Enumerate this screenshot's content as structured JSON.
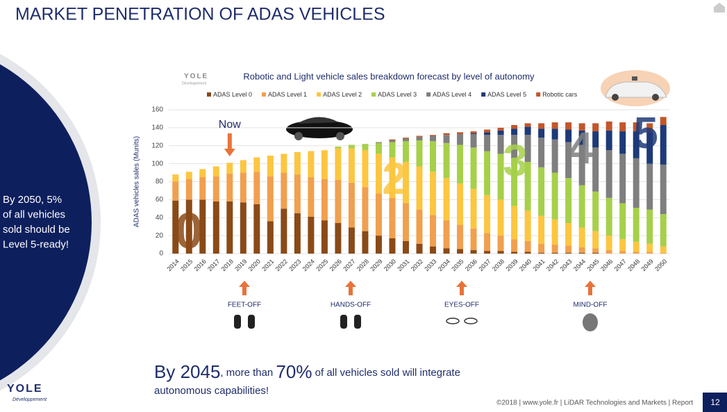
{
  "slide": {
    "title": "MARKET PENETRATION OF ADAS VEHICLES",
    "side_note": [
      "By 2050, 5%",
      "of all vehicles",
      "sold should be",
      "Level 5-ready!"
    ],
    "bottom_line": [
      "By 2045",
      ", more than ",
      "70%",
      " of all vehicles sold will integrate"
    ],
    "bottom_line2": "autonomous capabilities!",
    "footer": "©2018 | www.yole.fr | LiDAR Technologies and Markets | Report",
    "page": "12",
    "logo": "YOLE",
    "logo_sub": "Développement",
    "milestones": [
      "FEET-OFF",
      "HANDS-OFF",
      "EYES-OFF",
      "MIND-OFF"
    ]
  },
  "chart_data": {
    "type": "stacked_bar",
    "title": "Robotic and Light vehicle sales breakdown forecast by level of autonomy",
    "logo": "YOLE",
    "logo_sub": "Développement",
    "y_label": "ADAS vehicles sales (Munits)",
    "now_label": "Now",
    "annotations": [
      "0",
      "2",
      "3",
      "4",
      "5"
    ],
    "categories": [
      "2014",
      "2015",
      "2016",
      "2017",
      "2018",
      "2019",
      "2020",
      "2021",
      "2022",
      "2023",
      "2024",
      "2025",
      "2026",
      "2027",
      "2028",
      "2029",
      "2030",
      "2031",
      "2032",
      "2033",
      "2034",
      "2035",
      "2036",
      "2037",
      "2038",
      "2039",
      "2040",
      "2041",
      "2042",
      "2043",
      "2044",
      "2045",
      "2046",
      "2047",
      "2048",
      "2049",
      "2050"
    ],
    "ylim": [
      0,
      160
    ],
    "yticks": [
      0,
      20,
      40,
      60,
      80,
      100,
      120,
      140,
      160
    ],
    "grid": true,
    "legend": "top",
    "series": [
      {
        "name": "ADAS Level 0",
        "color": "#8a4a17",
        "values": [
          59,
          60,
          60,
          58,
          58,
          57,
          55,
          36,
          50,
          45,
          41,
          37,
          34,
          29,
          25,
          20,
          17,
          14,
          11,
          8,
          6,
          5,
          4,
          3,
          3,
          2,
          2,
          1,
          1,
          1,
          1,
          1,
          0,
          0,
          0,
          0,
          0
        ]
      },
      {
        "name": "ADAS Level 1",
        "color": "#f0a04e",
        "values": [
          21,
          23,
          25,
          28,
          31,
          33,
          36,
          50,
          40,
          43,
          44,
          46,
          48,
          50,
          49,
          47,
          45,
          42,
          38,
          35,
          31,
          27,
          24,
          20,
          17,
          14,
          12,
          10,
          9,
          8,
          6,
          5,
          4,
          3,
          2,
          2,
          1
        ]
      },
      {
        "name": "ADAS Level 2",
        "color": "#fcc640",
        "values": [
          8,
          8,
          9,
          11,
          12,
          14,
          16,
          23,
          21,
          25,
          29,
          32,
          35,
          38,
          41,
          44,
          45,
          46,
          48,
          48,
          47,
          46,
          44,
          42,
          40,
          37,
          34,
          31,
          28,
          25,
          22,
          19,
          16,
          13,
          11,
          9,
          7
        ]
      },
      {
        "name": "ADAS Level 3",
        "color": "#a6d04a",
        "values": [
          0,
          0,
          0,
          0,
          0,
          0,
          0,
          0,
          0,
          0,
          0,
          0,
          2,
          4,
          7,
          12,
          17,
          23,
          29,
          34,
          39,
          43,
          46,
          49,
          51,
          53,
          54,
          54,
          52,
          50,
          47,
          44,
          42,
          40,
          38,
          38,
          36
        ]
      },
      {
        "name": "ADAS Level 4",
        "color": "#7f7f7f",
        "values": [
          0,
          0,
          0,
          0,
          0,
          0,
          0,
          0,
          0,
          0,
          0,
          0,
          0,
          0,
          0,
          1,
          2,
          3,
          4,
          6,
          9,
          12,
          15,
          18,
          21,
          26,
          30,
          33,
          37,
          40,
          45,
          49,
          53,
          55,
          55,
          51,
          55
        ]
      },
      {
        "name": "ADAS Level 5",
        "color": "#1d3a78",
        "values": [
          0,
          0,
          0,
          0,
          0,
          0,
          0,
          0,
          0,
          0,
          0,
          0,
          0,
          0,
          0,
          0,
          0,
          0,
          0,
          0,
          0,
          0,
          1,
          3,
          5,
          7,
          9,
          10,
          12,
          14,
          16,
          18,
          22,
          25,
          30,
          35,
          44
        ]
      },
      {
        "name": "Robotic cars",
        "color": "#c2562a",
        "values": [
          0,
          0,
          0,
          0,
          0,
          0,
          0,
          0,
          0,
          0,
          0,
          0,
          0,
          0,
          0,
          0,
          1,
          1,
          1,
          1,
          2,
          2,
          2,
          3,
          3,
          4,
          4,
          6,
          7,
          8,
          8,
          9,
          10,
          10,
          10,
          10,
          9
        ]
      }
    ]
  }
}
